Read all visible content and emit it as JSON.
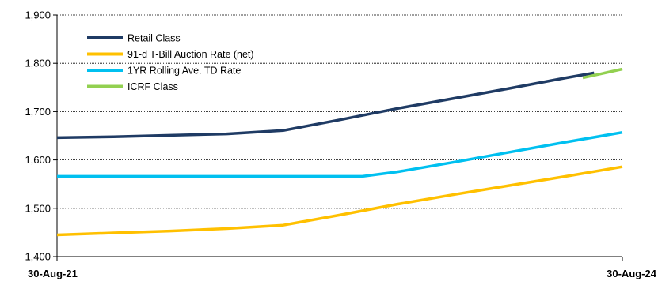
{
  "chart_data": {
    "type": "line",
    "title": "",
    "xlabel": "",
    "ylabel": "",
    "ylim": [
      1400,
      1900
    ],
    "yticks": [
      "1,400",
      "1,500",
      "1,600",
      "1,700",
      "1,800",
      "1,900"
    ],
    "x_start_label": "30-Aug-21",
    "x_end_label": "30-Aug-24",
    "grid": "horizontal",
    "legend_position": "top-left",
    "series": [
      {
        "name": "Retail Class",
        "color": "#1f3b64",
        "x": [
          0,
          0.1,
          0.2,
          0.3,
          0.4,
          0.5,
          0.6,
          0.7,
          0.8,
          0.9,
          0.95
        ],
        "values": [
          1646,
          1648,
          1651,
          1654,
          1661,
          1683,
          1706,
          1727,
          1748,
          1770,
          1780
        ]
      },
      {
        "name": "91-d T-Bill Auction Rate (net)",
        "color": "#ffc000",
        "x": [
          0,
          0.1,
          0.2,
          0.3,
          0.4,
          0.5,
          0.6,
          0.7,
          0.8,
          0.9,
          1.0
        ],
        "values": [
          1445,
          1449,
          1453,
          1458,
          1465,
          1486,
          1508,
          1528,
          1547,
          1566,
          1586
        ]
      },
      {
        "name": "1YR Rolling Ave. TD Rate",
        "color": "#00c0f0",
        "x": [
          0,
          0.1,
          0.2,
          0.3,
          0.4,
          0.5,
          0.54,
          0.6,
          0.7,
          0.8,
          0.9,
          1.0
        ],
        "values": [
          1566,
          1566,
          1566,
          1566,
          1566,
          1566,
          1566,
          1575,
          1595,
          1616,
          1637,
          1657
        ]
      },
      {
        "name": "ICRF Class",
        "color": "#92d050",
        "x": [
          0.93,
          1.0
        ],
        "values": [
          1770,
          1788
        ]
      }
    ]
  }
}
